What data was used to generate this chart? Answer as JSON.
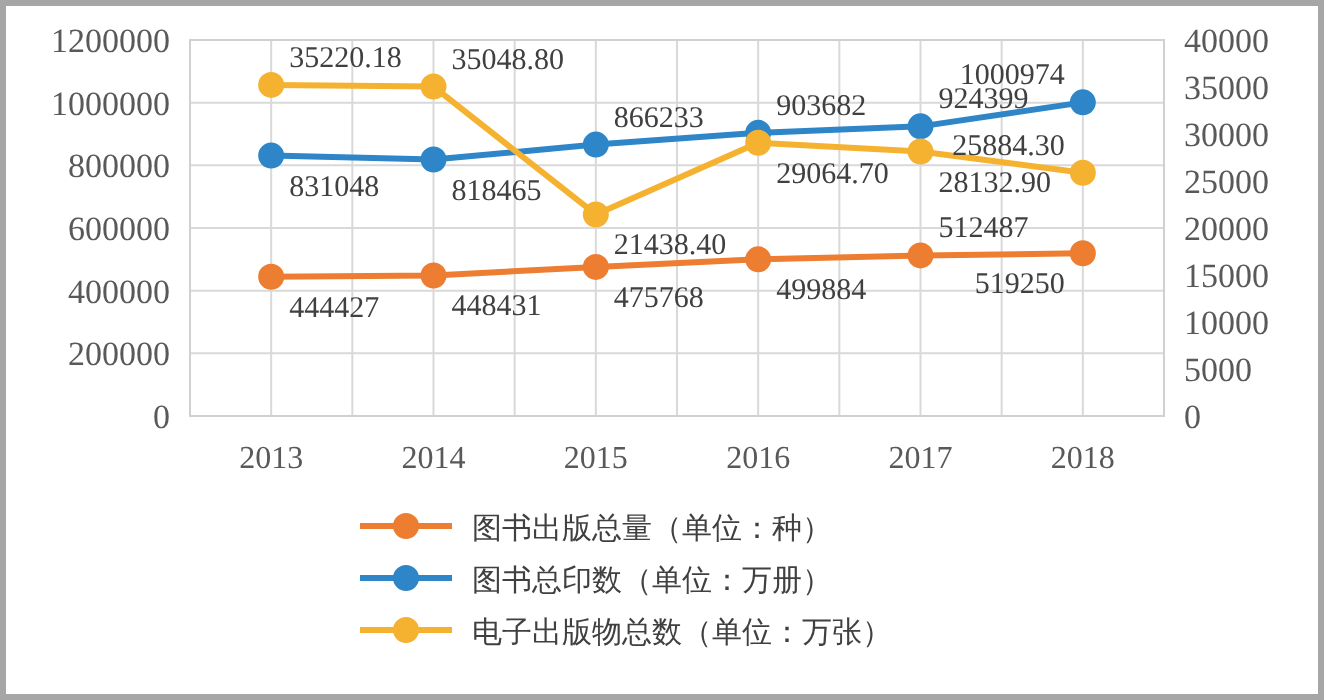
{
  "chart_data": {
    "type": "line",
    "categories": [
      "2013",
      "2014",
      "2015",
      "2016",
      "2017",
      "2018"
    ],
    "series": [
      {
        "name": "图书出版总量（单位：种）",
        "color": "#ed7d31",
        "values": [
          444427,
          448431,
          475768,
          499884,
          512487,
          519250
        ]
      },
      {
        "name": "图书总印数（单位：万册）",
        "color": "#2e86c8",
        "values": [
          831048,
          818465,
          866233,
          903682,
          924399,
          1000974
        ]
      },
      {
        "name": "电子出版物总数（单位：万张）",
        "color": "#f5b230",
        "axis": "y2",
        "values": [
          35220.18,
          35048.8,
          21438.4,
          29064.7,
          28132.9,
          25884.3
        ],
        "value_labels": [
          "35220.18",
          "35048.80",
          "21438.40",
          "29064.70",
          "28132.90",
          "25884.30"
        ]
      }
    ],
    "ylim": [
      0,
      1200000
    ],
    "yticks": [
      0,
      200000,
      400000,
      600000,
      800000,
      1000000,
      1200000
    ],
    "y2lim": [
      0,
      40000
    ],
    "y2ticks": [
      0,
      5000,
      10000,
      15000,
      20000,
      25000,
      30000,
      35000,
      40000
    ],
    "grid": true,
    "legend": "bottom",
    "marker": "circle",
    "data_labels": true
  }
}
